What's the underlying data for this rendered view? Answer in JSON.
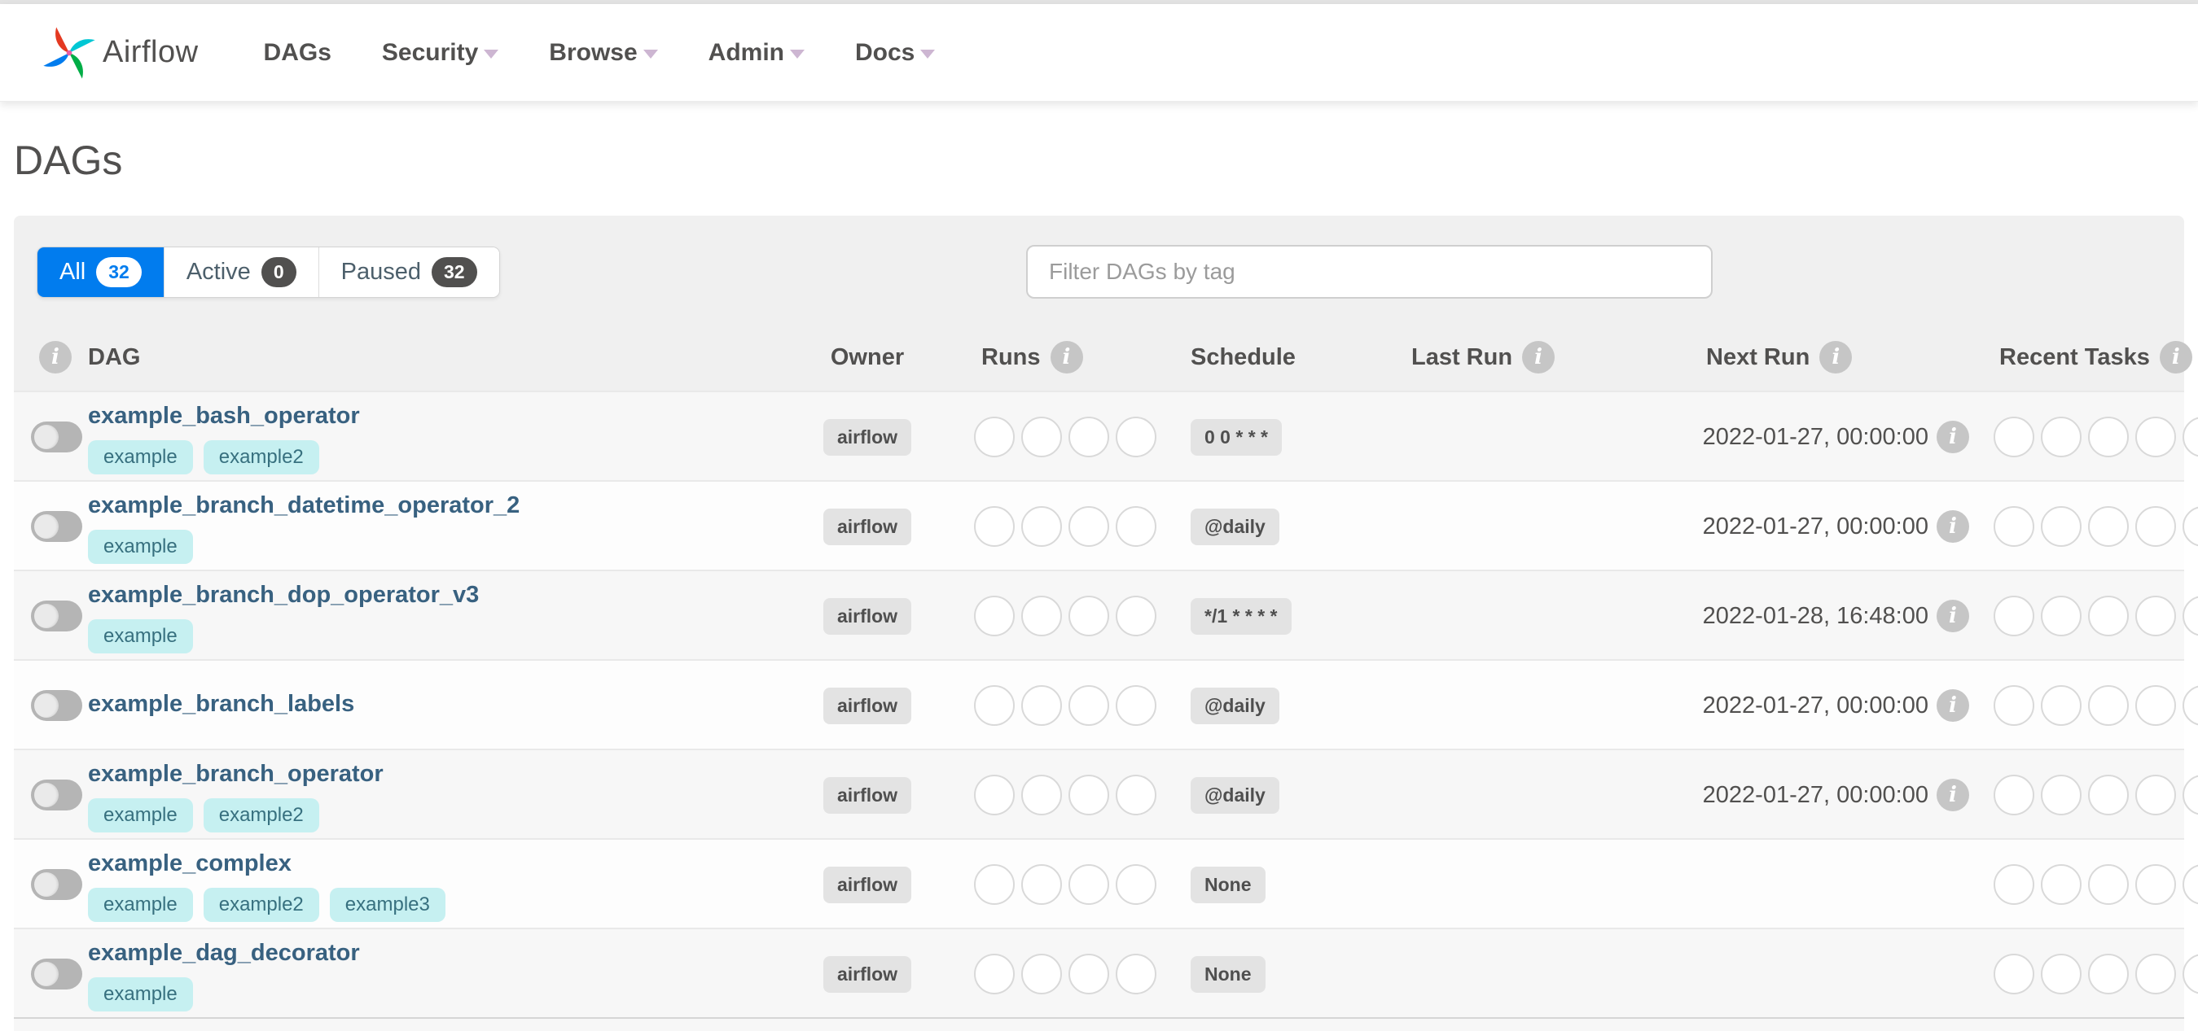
{
  "brand": {
    "name": "Airflow"
  },
  "nav": {
    "items": [
      {
        "label": "DAGs",
        "caret": false
      },
      {
        "label": "Security",
        "caret": true
      },
      {
        "label": "Browse",
        "caret": true
      },
      {
        "label": "Admin",
        "caret": true
      },
      {
        "label": "Docs",
        "caret": true
      }
    ]
  },
  "page": {
    "title": "DAGs"
  },
  "tabs": [
    {
      "label": "All",
      "count": "32",
      "active": true
    },
    {
      "label": "Active",
      "count": "0",
      "active": false
    },
    {
      "label": "Paused",
      "count": "32",
      "active": false
    }
  ],
  "filter": {
    "placeholder": "Filter DAGs by tag"
  },
  "icons": {
    "info_glyph": "i"
  },
  "colors": {
    "accent": "#017cee",
    "link": "#386180",
    "tag_bg": "#c6f0f1",
    "tag_text": "#37707f",
    "badge_bg": "#e3e3e3",
    "badge_text": "#4f4f4f",
    "count_badge_bg": "#51504f"
  },
  "table": {
    "headers": [
      {
        "key": "dag_info",
        "label": "",
        "info": true
      },
      {
        "key": "dag",
        "label": "DAG",
        "info": false
      },
      {
        "key": "owner",
        "label": "Owner",
        "info": false
      },
      {
        "key": "runs",
        "label": "Runs",
        "info": true
      },
      {
        "key": "schedule",
        "label": "Schedule",
        "info": false
      },
      {
        "key": "last_run",
        "label": "Last Run",
        "info": true
      },
      {
        "key": "next_run",
        "label": "Next Run",
        "info": true
      },
      {
        "key": "recent_tasks",
        "label": "Recent Tasks",
        "info": true
      }
    ],
    "runs_circle_count": 4,
    "recent_circle_count": 5
  },
  "rows": [
    {
      "id": "example_bash_operator",
      "tags": [
        "example",
        "example2"
      ],
      "owner": "airflow",
      "schedule": "0 0 * * *",
      "last_run": "",
      "next_run": "2022-01-27, 00:00:00",
      "paused": true
    },
    {
      "id": "example_branch_datetime_operator_2",
      "tags": [
        "example"
      ],
      "owner": "airflow",
      "schedule": "@daily",
      "last_run": "",
      "next_run": "2022-01-27, 00:00:00",
      "paused": true
    },
    {
      "id": "example_branch_dop_operator_v3",
      "tags": [
        "example"
      ],
      "owner": "airflow",
      "schedule": "*/1 * * * *",
      "last_run": "",
      "next_run": "2022-01-28, 16:48:00",
      "paused": true
    },
    {
      "id": "example_branch_labels",
      "tags": [],
      "owner": "airflow",
      "schedule": "@daily",
      "last_run": "",
      "next_run": "2022-01-27, 00:00:00",
      "paused": true
    },
    {
      "id": "example_branch_operator",
      "tags": [
        "example",
        "example2"
      ],
      "owner": "airflow",
      "schedule": "@daily",
      "last_run": "",
      "next_run": "2022-01-27, 00:00:00",
      "paused": true
    },
    {
      "id": "example_complex",
      "tags": [
        "example",
        "example2",
        "example3"
      ],
      "owner": "airflow",
      "schedule": "None",
      "last_run": "",
      "next_run": "",
      "paused": true
    },
    {
      "id": "example_dag_decorator",
      "tags": [
        "example"
      ],
      "owner": "airflow",
      "schedule": "None",
      "last_run": "",
      "next_run": "",
      "paused": true
    }
  ]
}
